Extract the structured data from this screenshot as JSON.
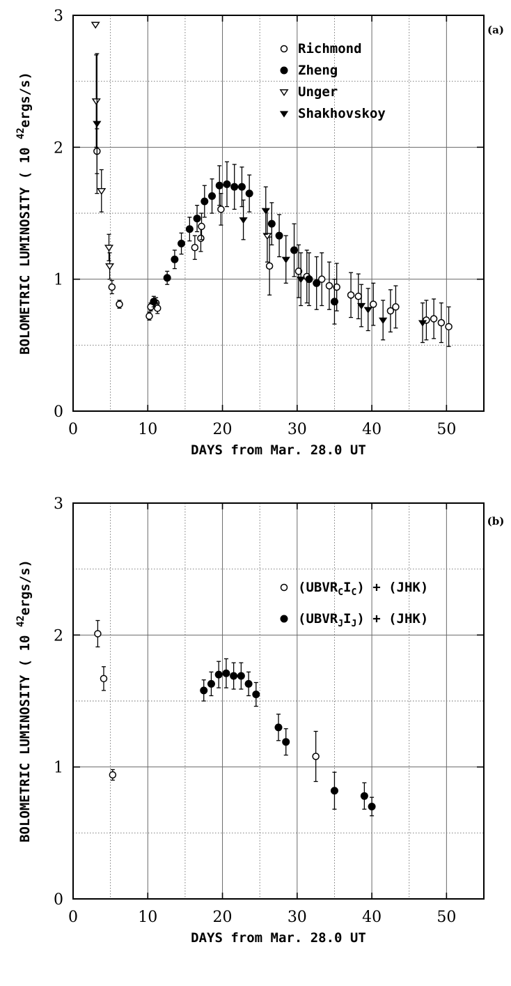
{
  "chart_data": [
    {
      "panel_label": "(a)",
      "type": "scatter",
      "xlabel": "DAYS from Mar. 28.0 UT",
      "ylabel": "BOLOMETRIC LUMINOSITY ( 10",
      "ylabel_exp": "42",
      "ylabel_unit": "ergs/s)",
      "xlim": [
        0,
        55
      ],
      "ylim": [
        0,
        3
      ],
      "xticks": [
        "0",
        "10",
        "20",
        "30",
        "40",
        "50"
      ],
      "yticks": [
        "0",
        "1",
        "2",
        "3"
      ],
      "grid": true,
      "legend_position": "top-right",
      "series": [
        {
          "name": "Richmond",
          "marker": "open-circle",
          "points": [
            {
              "x": 3.2,
              "y": 1.97,
              "err": 0.17
            },
            {
              "x": 5.2,
              "y": 0.94,
              "err": 0.05
            },
            {
              "x": 6.2,
              "y": 0.81,
              "err": 0.03
            },
            {
              "x": 10.2,
              "y": 0.72,
              "err": 0.03
            },
            {
              "x": 10.4,
              "y": 0.79,
              "err": 0.03
            },
            {
              "x": 11.1,
              "y": 0.82,
              "err": 0.04
            },
            {
              "x": 11.3,
              "y": 0.78,
              "err": 0.04
            },
            {
              "x": 16.3,
              "y": 1.24,
              "err": 0.09
            },
            {
              "x": 17.1,
              "y": 1.31,
              "err": 0.1
            },
            {
              "x": 17.2,
              "y": 1.4,
              "err": 0.1
            },
            {
              "x": 19.8,
              "y": 1.53,
              "err": 0.12
            },
            {
              "x": 26.3,
              "y": 1.1,
              "err": 0.22
            },
            {
              "x": 30.2,
              "y": 1.06,
              "err": 0.2
            },
            {
              "x": 31.3,
              "y": 1.02,
              "err": 0.2
            },
            {
              "x": 33.3,
              "y": 1.0,
              "err": 0.2
            },
            {
              "x": 34.3,
              "y": 0.95,
              "err": 0.18
            },
            {
              "x": 35.3,
              "y": 0.94,
              "err": 0.18
            },
            {
              "x": 37.2,
              "y": 0.88,
              "err": 0.17
            },
            {
              "x": 38.2,
              "y": 0.87,
              "err": 0.17
            },
            {
              "x": 40.2,
              "y": 0.81,
              "err": 0.16
            },
            {
              "x": 42.5,
              "y": 0.76,
              "err": 0.16
            },
            {
              "x": 43.2,
              "y": 0.79,
              "err": 0.16
            },
            {
              "x": 47.3,
              "y": 0.69,
              "err": 0.15
            },
            {
              "x": 48.3,
              "y": 0.7,
              "err": 0.15
            },
            {
              "x": 49.3,
              "y": 0.67,
              "err": 0.15
            },
            {
              "x": 50.3,
              "y": 0.64,
              "err": 0.15
            }
          ]
        },
        {
          "name": "Zheng",
          "marker": "filled-circle",
          "points": [
            {
              "x": 10.8,
              "y": 0.83,
              "err": 0.04
            },
            {
              "x": 12.6,
              "y": 1.01,
              "err": 0.05
            },
            {
              "x": 13.6,
              "y": 1.15,
              "err": 0.07
            },
            {
              "x": 14.5,
              "y": 1.27,
              "err": 0.08
            },
            {
              "x": 15.6,
              "y": 1.38,
              "err": 0.09
            },
            {
              "x": 16.6,
              "y": 1.46,
              "err": 0.1
            },
            {
              "x": 17.6,
              "y": 1.59,
              "err": 0.12
            },
            {
              "x": 18.6,
              "y": 1.63,
              "err": 0.13
            },
            {
              "x": 19.6,
              "y": 1.71,
              "err": 0.15
            },
            {
              "x": 20.6,
              "y": 1.72,
              "err": 0.17
            },
            {
              "x": 21.6,
              "y": 1.7,
              "err": 0.17
            },
            {
              "x": 22.6,
              "y": 1.7,
              "err": 0.15
            },
            {
              "x": 23.6,
              "y": 1.65,
              "err": 0.14
            },
            {
              "x": 26.6,
              "y": 1.42,
              "err": 0.16
            },
            {
              "x": 27.6,
              "y": 1.33,
              "err": 0.16
            },
            {
              "x": 29.6,
              "y": 1.22,
              "err": 0.2
            },
            {
              "x": 31.6,
              "y": 1.0,
              "err": 0.2
            },
            {
              "x": 32.6,
              "y": 0.97,
              "err": 0.2
            },
            {
              "x": 35.0,
              "y": 0.83,
              "err": 0.17
            }
          ]
        },
        {
          "name": "Unger",
          "marker": "open-triangle-down",
          "points": [
            {
              "x": 3.0,
              "y": 2.93,
              "err": 0.0
            },
            {
              "x": 3.1,
              "y": 2.35,
              "err": 0.35
            },
            {
              "x": 3.8,
              "y": 1.67,
              "err": 0.16
            },
            {
              "x": 4.8,
              "y": 1.24,
              "err": 0.1
            },
            {
              "x": 4.9,
              "y": 1.1,
              "err": 0.1
            },
            {
              "x": 26.0,
              "y": 1.33,
              "err": 0.2
            }
          ]
        },
        {
          "name": "Shakhovskoy",
          "marker": "filled-triangle-down",
          "points": [
            {
              "x": 3.2,
              "y": 2.18,
              "err": 0.53
            },
            {
              "x": 22.8,
              "y": 1.45,
              "err": 0.15
            },
            {
              "x": 25.8,
              "y": 1.52,
              "err": 0.18
            },
            {
              "x": 28.5,
              "y": 1.15,
              "err": 0.18
            },
            {
              "x": 30.5,
              "y": 1.0,
              "err": 0.2
            },
            {
              "x": 38.6,
              "y": 0.8,
              "err": 0.16
            },
            {
              "x": 39.5,
              "y": 0.77,
              "err": 0.16
            },
            {
              "x": 41.5,
              "y": 0.69,
              "err": 0.15
            },
            {
              "x": 46.8,
              "y": 0.67,
              "err": 0.15
            }
          ]
        }
      ]
    },
    {
      "panel_label": "(b)",
      "type": "scatter",
      "xlabel": "DAYS from Mar. 28.0 UT",
      "ylabel": "BOLOMETRIC LUMINOSITY ( 10",
      "ylabel_exp": "42",
      "ylabel_unit": "ergs/s)",
      "xlim": [
        0,
        55
      ],
      "ylim": [
        0,
        3
      ],
      "xticks": [
        "0",
        "10",
        "20",
        "30",
        "40",
        "50"
      ],
      "yticks": [
        "0",
        "1",
        "2",
        "3"
      ],
      "grid": true,
      "legend_position": "top-right",
      "series": [
        {
          "name_parts": [
            "(UBVR",
            "C",
            "I",
            "C",
            ") + (JHK)"
          ],
          "marker": "open-circle",
          "points": [
            {
              "x": 3.3,
              "y": 2.01,
              "err": 0.1
            },
            {
              "x": 4.1,
              "y": 1.67,
              "err": 0.09
            },
            {
              "x": 5.3,
              "y": 0.94,
              "err": 0.04
            },
            {
              "x": 32.5,
              "y": 1.08,
              "err": 0.19
            }
          ]
        },
        {
          "name_parts": [
            "(UBVR",
            "J",
            "I",
            "J",
            ") + (JHK)"
          ],
          "marker": "filled-circle",
          "points": [
            {
              "x": 17.5,
              "y": 1.58,
              "err": 0.08
            },
            {
              "x": 18.5,
              "y": 1.63,
              "err": 0.09
            },
            {
              "x": 19.5,
              "y": 1.7,
              "err": 0.1
            },
            {
              "x": 20.5,
              "y": 1.71,
              "err": 0.11
            },
            {
              "x": 21.5,
              "y": 1.69,
              "err": 0.1
            },
            {
              "x": 22.5,
              "y": 1.69,
              "err": 0.1
            },
            {
              "x": 23.5,
              "y": 1.63,
              "err": 0.09
            },
            {
              "x": 24.5,
              "y": 1.55,
              "err": 0.09
            },
            {
              "x": 27.5,
              "y": 1.3,
              "err": 0.1
            },
            {
              "x": 28.5,
              "y": 1.19,
              "err": 0.1
            },
            {
              "x": 35.0,
              "y": 0.82,
              "err": 0.14
            },
            {
              "x": 39.0,
              "y": 0.78,
              "err": 0.1
            },
            {
              "x": 40.0,
              "y": 0.7,
              "err": 0.07
            }
          ]
        }
      ]
    }
  ]
}
